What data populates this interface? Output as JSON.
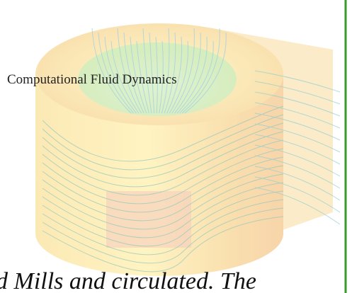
{
  "heading": "Computational Fluid Dynamics",
  "footer_text": "d Mills and circulated. The"
}
